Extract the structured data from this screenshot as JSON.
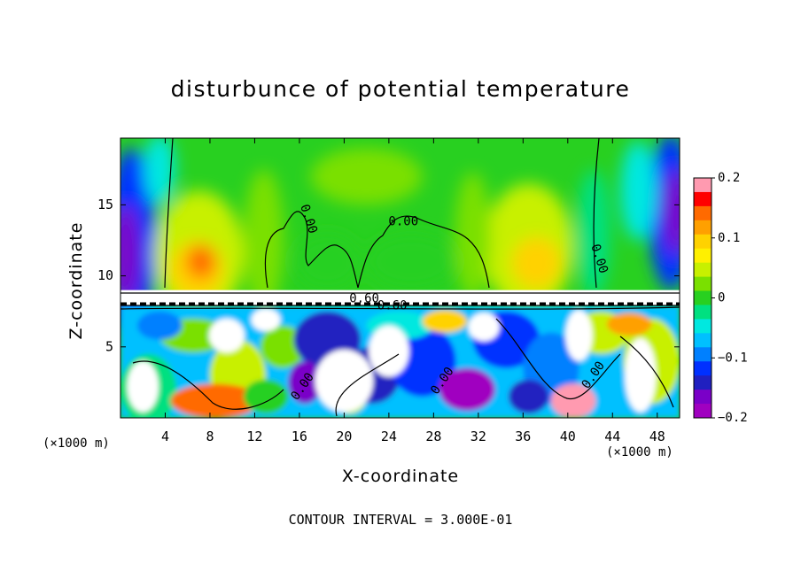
{
  "chart_data": {
    "type": "heatmap",
    "title": "disturbunce of potential temperature",
    "xlabel": "X-coordinate",
    "ylabel": "Z-coordinate",
    "x_unit": "(×1000 m)",
    "z_unit": "(×1000 m)",
    "xlim": [
      0,
      50
    ],
    "ylim": [
      0,
      19.7
    ],
    "x_ticks": [
      4,
      8,
      12,
      16,
      20,
      24,
      28,
      32,
      36,
      40,
      44,
      48
    ],
    "y_ticks": [
      5,
      10,
      15
    ],
    "colorbar": {
      "range": [
        -0.2,
        0.2
      ],
      "tick_values": [
        0.2,
        0.1,
        0,
        -0.1,
        -0.2
      ],
      "tick_labels": [
        "0.2",
        "0.1",
        "0",
        "−0.1",
        "−0.2"
      ],
      "colors": [
        "#ff9ab0",
        "#ff0000",
        "#ff6a00",
        "#ffa000",
        "#ffd200",
        "#fff000",
        "#c8f000",
        "#7ae000",
        "#28d020",
        "#00e080",
        "#00e8e0",
        "#00c0ff",
        "#0080ff",
        "#0030ff",
        "#2020c0",
        "#7a00c8",
        "#a000c0"
      ]
    },
    "contour_interval_text": "CONTOUR INTERVAL = 3.000E-01",
    "contour_labels": [
      {
        "text": "0.00",
        "x": 25.3,
        "z": 13.8
      },
      {
        "text": "0.00",
        "x": 16.8,
        "z": 14.0
      },
      {
        "text": "0.00",
        "x": 42.8,
        "z": 11.2
      },
      {
        "text": "0.60",
        "x": 21.8,
        "z": 8.4
      },
      {
        "text": "0.60",
        "x": 24.3,
        "z": 7.9
      },
      {
        "text": "0.00",
        "x": 16.3,
        "z": 2.2
      },
      {
        "text": "0.00",
        "x": 28.8,
        "z": 2.6
      },
      {
        "text": "0.00",
        "x": 42.3,
        "z": 3.0
      }
    ],
    "regions": [
      {
        "desc": "upper background",
        "x": [
          0,
          50
        ],
        "z": [
          9,
          19.7
        ],
        "value": 0.0
      },
      {
        "desc": "warm lobe left",
        "x": 6.5,
        "z": 10.5,
        "value": 0.1
      },
      {
        "desc": "warm lobe right",
        "x": 36.5,
        "z": 11.0,
        "value": 0.08
      },
      {
        "desc": "cold band left edge",
        "x": 0.8,
        "z": 12.0,
        "value": -0.12
      },
      {
        "desc": "cold band right edge",
        "x": 48.5,
        "z": 14.0,
        "value": -0.12
      },
      {
        "desc": "strong inversion layer",
        "x": [
          0,
          50
        ],
        "z": [
          8.0,
          9.0
        ],
        "value": 0.6
      },
      {
        "desc": "turbulent lower layer",
        "x": [
          0,
          50
        ],
        "z": [
          0,
          7.8
        ],
        "value": "mixed"
      }
    ]
  }
}
